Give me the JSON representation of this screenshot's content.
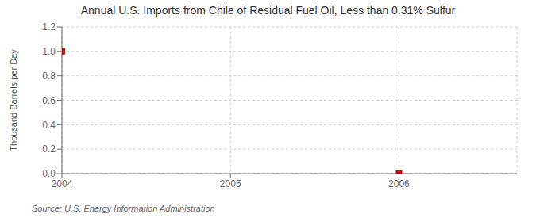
{
  "chart_data": {
    "type": "scatter",
    "title": "Annual U.S. Imports from Chile of Residual Fuel Oil, Less than 0.31% Sulfur",
    "ylabel": "Thousand Barrels per Day",
    "annotations": [
      "Source: U.S. Energy Information Administration"
    ],
    "x": [
      2004,
      2006
    ],
    "values": [
      1.0,
      0.0
    ],
    "color": "#cc0000",
    "marker": "square",
    "xlim": [
      2004,
      2006.7
    ],
    "ylim": [
      0.0,
      1.2
    ],
    "xticks": [
      2004,
      2005,
      2006
    ],
    "yticks": [
      {
        "value": 0.0,
        "label": "0.0"
      },
      0.2,
      0.4,
      0.6,
      0.8,
      {
        "value": 1.0,
        "label": "1.0"
      },
      1.2
    ],
    "grid": true
  }
}
